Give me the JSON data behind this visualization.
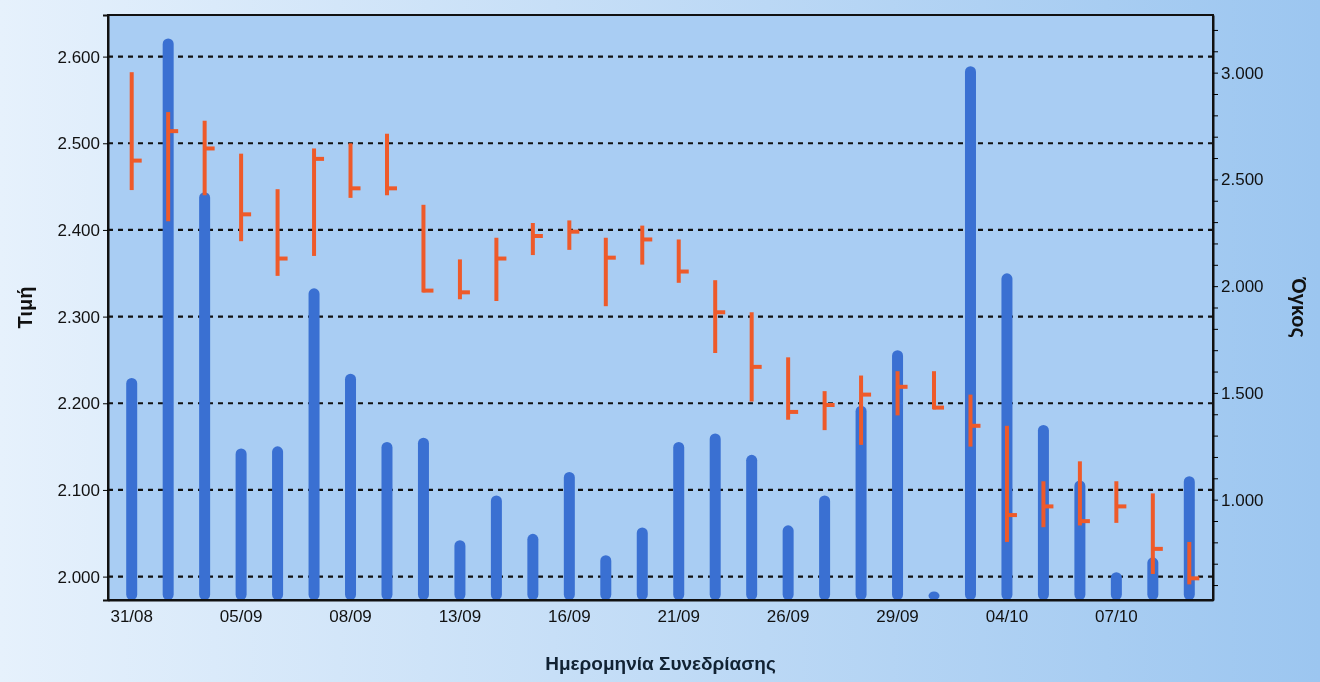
{
  "chart_data": {
    "type": "bar",
    "xlabel": "Ημερομηνία Συνεδρίασης",
    "ylabel": "Τιμή",
    "y2label": "Όγκος",
    "categories": [
      "31/08",
      null,
      null,
      "05/09",
      null,
      null,
      "08/09",
      null,
      null,
      "13/09",
      null,
      null,
      "16/09",
      null,
      null,
      "21/09",
      null,
      null,
      "26/09",
      null,
      null,
      "29/09",
      null,
      null,
      "04/10",
      null,
      null,
      "07/10",
      null,
      null
    ],
    "ylim": [
      1.973,
      2.648
    ],
    "yticks": [
      {
        "value": 2.0,
        "label": "2.000"
      },
      {
        "value": 2.1,
        "label": "2.100"
      },
      {
        "value": 2.2,
        "label": "2.200"
      },
      {
        "value": 2.3,
        "label": "2.300"
      },
      {
        "value": 2.4,
        "label": "2.400"
      },
      {
        "value": 2.5,
        "label": "2.500"
      },
      {
        "value": 2.6,
        "label": "2.600"
      }
    ],
    "y2lim": [
      530,
      3270
    ],
    "y2ticks": [
      {
        "value": 600,
        "label": null
      },
      {
        "value": 700,
        "label": null
      },
      {
        "value": 800,
        "label": null
      },
      {
        "value": 900,
        "label": null
      },
      {
        "value": 1000,
        "label": "1.000"
      },
      {
        "value": 1100,
        "label": null
      },
      {
        "value": 1200,
        "label": null
      },
      {
        "value": 1300,
        "label": null
      },
      {
        "value": 1400,
        "label": null
      },
      {
        "value": 1500,
        "label": "1.500"
      },
      {
        "value": 1600,
        "label": null
      },
      {
        "value": 1700,
        "label": null
      },
      {
        "value": 1800,
        "label": null
      },
      {
        "value": 1900,
        "label": null
      },
      {
        "value": 2000,
        "label": "2.000"
      },
      {
        "value": 2100,
        "label": null
      },
      {
        "value": 2200,
        "label": null
      },
      {
        "value": 2300,
        "label": null
      },
      {
        "value": 2400,
        "label": null
      },
      {
        "value": 2500,
        "label": "2.500"
      },
      {
        "value": 2600,
        "label": null
      },
      {
        "value": 2700,
        "label": null
      },
      {
        "value": 2800,
        "label": null
      },
      {
        "value": 2900,
        "label": null
      },
      {
        "value": 3000,
        "label": "3.000"
      },
      {
        "value": 3100,
        "label": null
      },
      {
        "value": 3200,
        "label": null
      }
    ],
    "grid": "y",
    "line_style": "dashed",
    "series": [
      {
        "axis": "y2",
        "color": "#3a70d2",
        "values": [
          1570,
          3160,
          2440,
          1240,
          1250,
          1990,
          1590,
          1270,
          1290,
          810,
          1020,
          840,
          1130,
          740,
          870,
          1270,
          1310,
          1210,
          880,
          1020,
          1440,
          1700,
          570,
          3030,
          2060,
          1350,
          1090,
          660,
          730,
          1110
        ]
      },
      {
        "type": "scatter",
        "color": "#ee5a2a",
        "values": [
          2.48,
          2.514,
          2.494,
          2.418,
          2.367,
          2.482,
          2.448,
          2.448,
          2.33,
          2.328,
          2.367,
          2.393,
          2.398,
          2.368,
          2.389,
          2.352,
          2.305,
          2.242,
          2.19,
          2.198,
          2.21,
          2.219,
          2.195,
          2.174,
          2.071,
          2.081,
          2.064,
          2.081,
          2.032,
          1.998
        ],
        "errors": [
          [
            2.446,
            2.582
          ],
          [
            2.41,
            2.536
          ],
          [
            2.44,
            2.526
          ],
          [
            2.387,
            2.488
          ],
          [
            2.347,
            2.447
          ],
          [
            2.37,
            2.494
          ],
          [
            2.437,
            2.5
          ],
          [
            2.44,
            2.511
          ],
          [
            2.328,
            2.429
          ],
          [
            2.32,
            2.366
          ],
          [
            2.318,
            2.391
          ],
          [
            2.371,
            2.408
          ],
          [
            2.377,
            2.411
          ],
          [
            2.312,
            2.391
          ],
          [
            2.36,
            2.405
          ],
          [
            2.339,
            2.389
          ],
          [
            2.258,
            2.342
          ],
          [
            2.202,
            2.305
          ],
          [
            2.181,
            2.253
          ],
          [
            2.169,
            2.214
          ],
          [
            2.152,
            2.232
          ],
          [
            2.186,
            2.237
          ],
          [
            2.193,
            2.237
          ],
          [
            2.15,
            2.21
          ],
          [
            2.04,
            2.174
          ],
          [
            2.057,
            2.11
          ],
          [
            2.059,
            2.133
          ],
          [
            2.062,
            2.11
          ],
          [
            2.003,
            2.096
          ],
          [
            1.991,
            2.04
          ]
        ]
      }
    ]
  }
}
